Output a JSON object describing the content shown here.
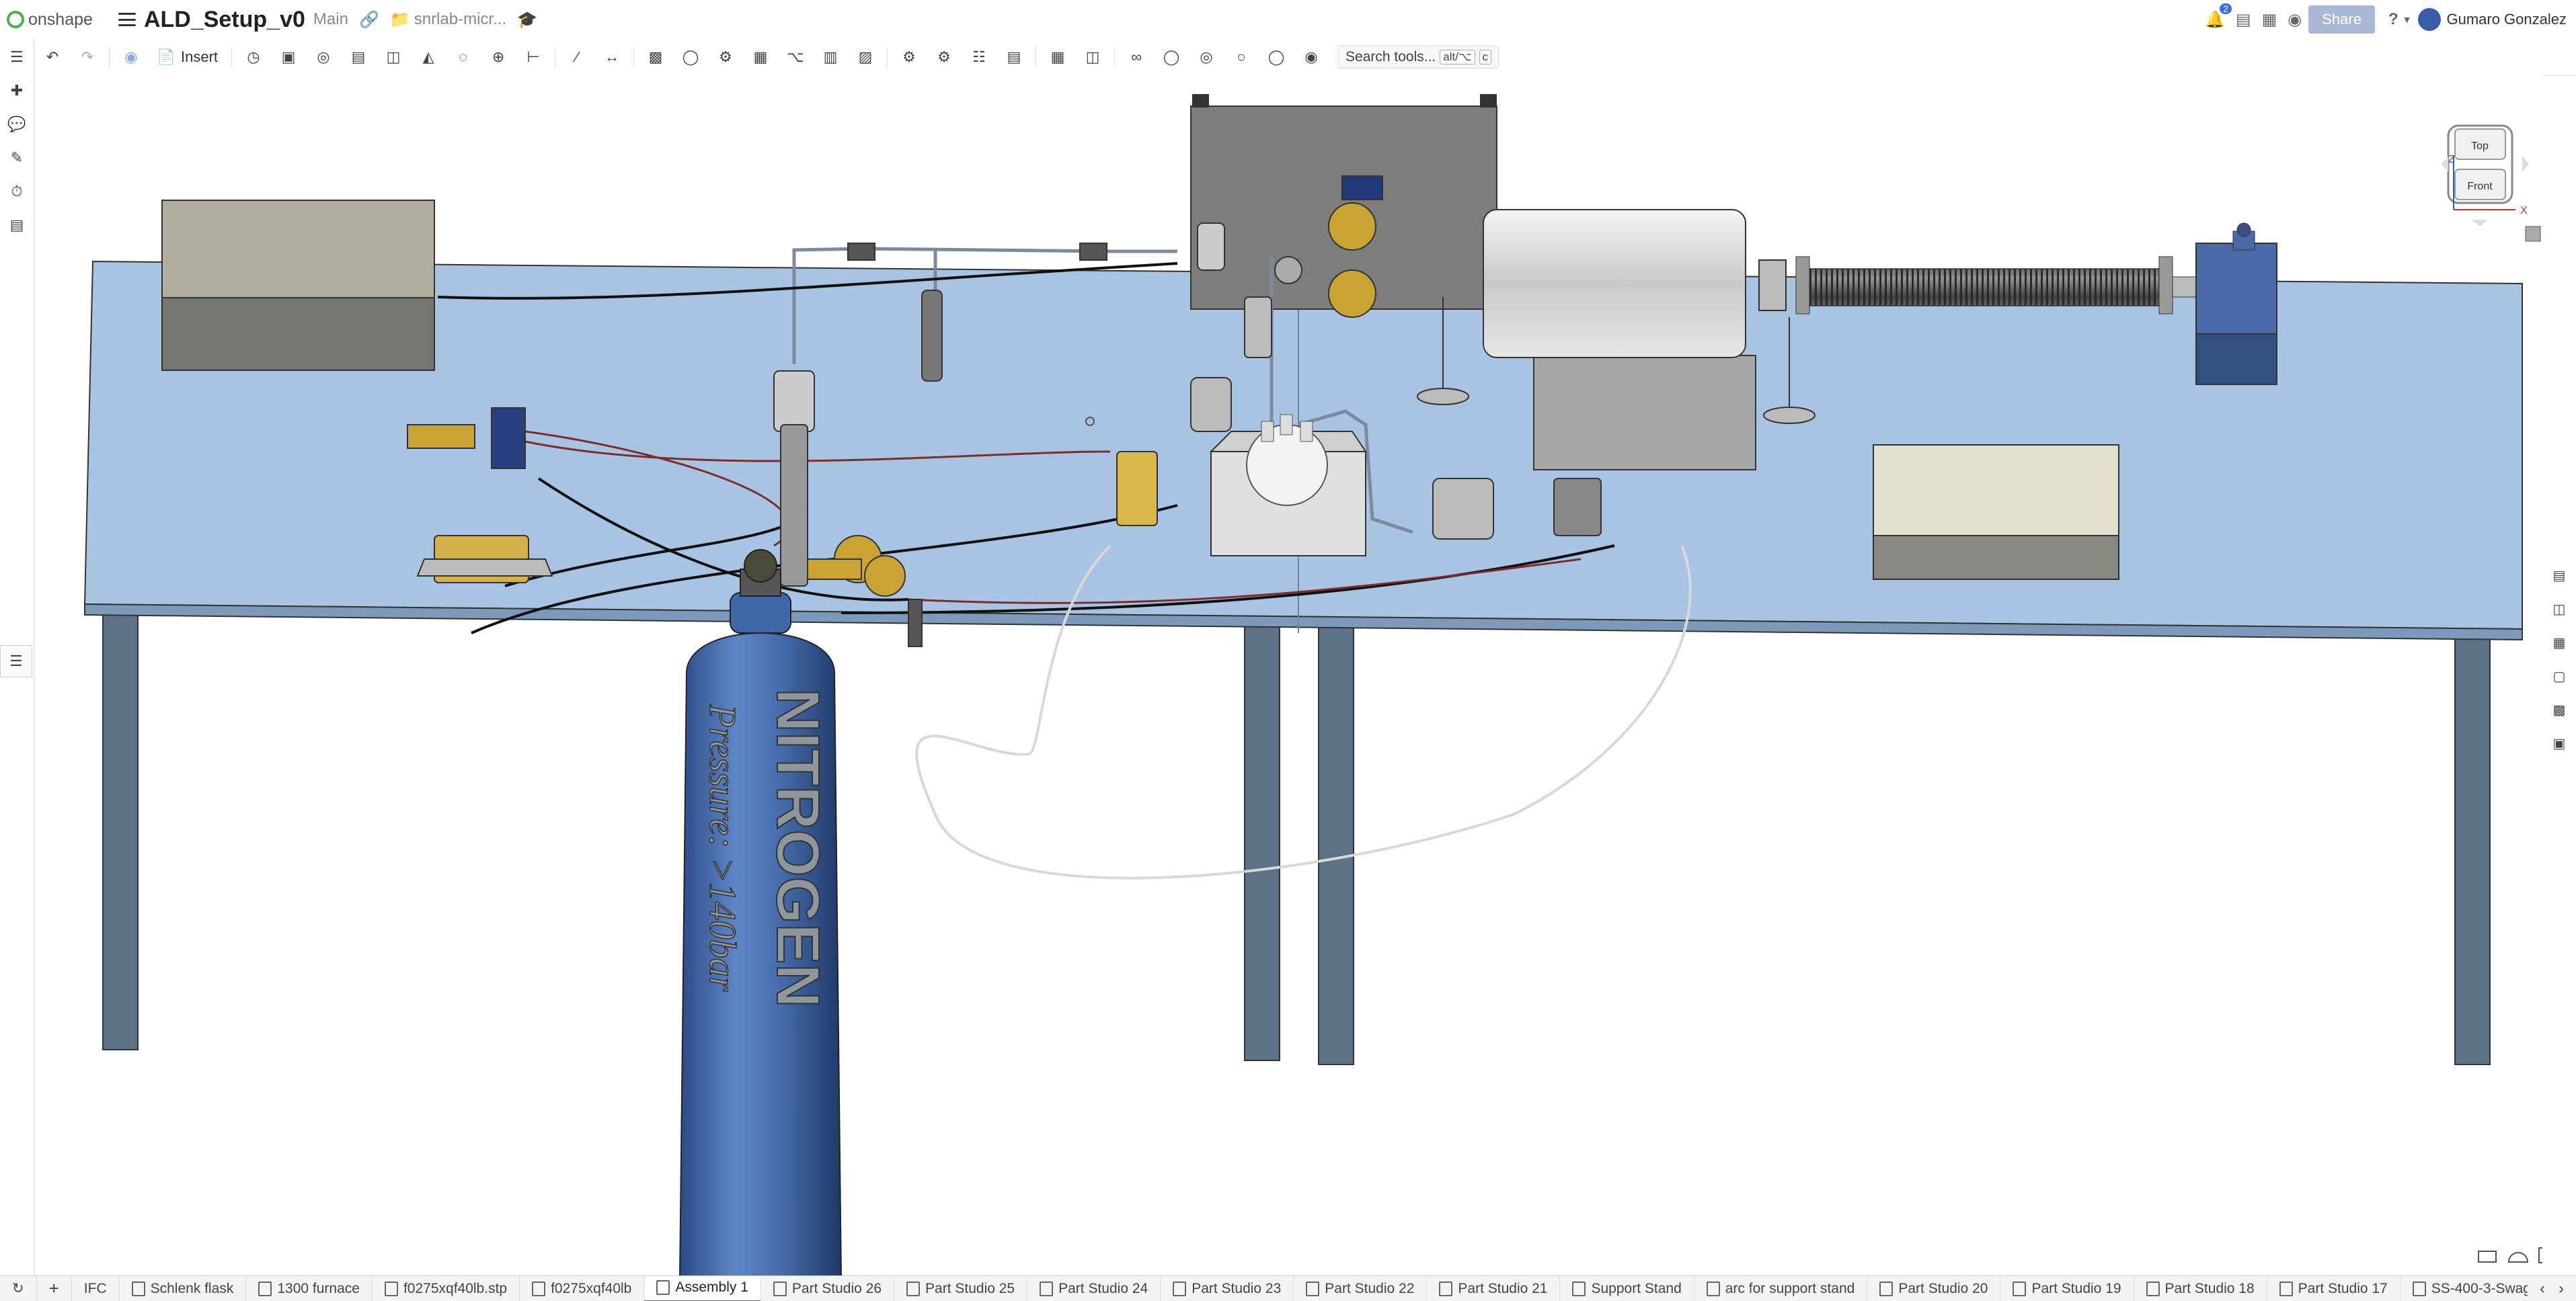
{
  "app": {
    "logo_text": "onshape",
    "document_title": "ALD_Setup_v0",
    "branch": "Main",
    "folder": "snrlab-micr...",
    "notifications_count": "2",
    "share_label": "Share",
    "help_label": "?",
    "user_name": "Gumaro Gonzalez"
  },
  "toolbar": {
    "insert_label": "Insert",
    "search_label": "Search tools...",
    "search_shortcut_1": "alt/⌥",
    "search_shortcut_2": "c"
  },
  "view_cube": {
    "top_label": "Top",
    "front_label": "Front",
    "axis_z": "Z",
    "axis_x": "X"
  },
  "scene": {
    "cylinder_label": "NITROGEN",
    "cylinder_sub_label": "Pressure: >140bar"
  },
  "tabs": [
    {
      "label": "IFC"
    },
    {
      "label": "Schlenk flask"
    },
    {
      "label": "1300 furnace"
    },
    {
      "label": "f0275xqf40lb.stp"
    },
    {
      "label": "f0275xqf40lb"
    },
    {
      "label": "Assembly 1"
    },
    {
      "label": "Part Studio 26"
    },
    {
      "label": "Part Studio 25"
    },
    {
      "label": "Part Studio 24"
    },
    {
      "label": "Part Studio 23"
    },
    {
      "label": "Part Studio 22"
    },
    {
      "label": "Part Studio 21"
    },
    {
      "label": "Support Stand"
    },
    {
      "label": "arc for support stand"
    },
    {
      "label": "Part Studio 20"
    },
    {
      "label": "Part Studio 19"
    },
    {
      "label": "Part Studio 18"
    },
    {
      "label": "Part Studio 17"
    },
    {
      "label": "SS-400-3-Swag"
    }
  ],
  "colors": {
    "accent": "#3a6fd6",
    "table_top": "#a8c4e2",
    "cylinder": "#3f67a8"
  }
}
